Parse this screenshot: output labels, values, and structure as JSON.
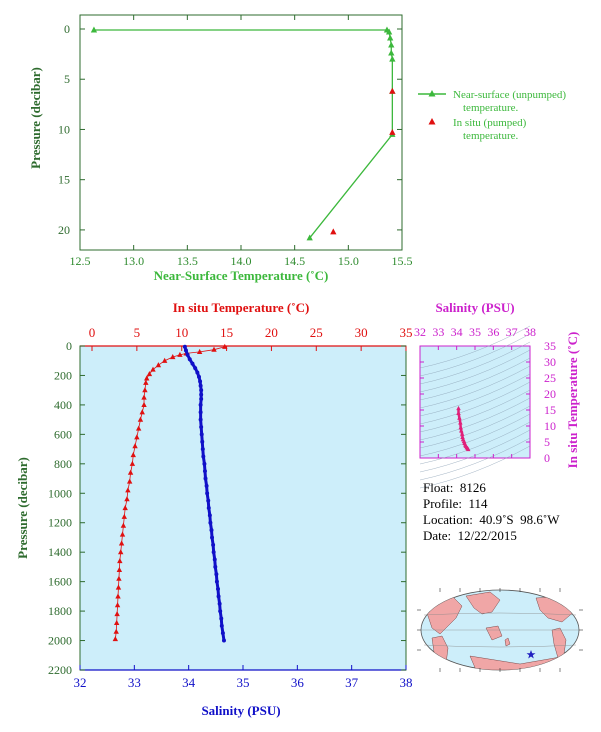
{
  "chart_data": [
    {
      "type": "line",
      "xlabel": "Near-Surface Temperature (˚C)",
      "ylabel": "Pressure (decibar)",
      "xlim": [
        12.5,
        15.5
      ],
      "ylim": [
        0,
        22
      ],
      "y_inverted": true,
      "xticks": [
        "12.5",
        "13.0",
        "13.5",
        "14.0",
        "14.5",
        "15.0",
        "15.5"
      ],
      "yticks": [
        "0",
        "5",
        "10",
        "15",
        "20"
      ],
      "colors": {
        "axis": "#2e8b2e",
        "series1": "#3cb83c",
        "series2": "#e01010"
      },
      "series": [
        {
          "name": "Near-surface (unpumped)\ntemperature.",
          "marker": "triangle",
          "line": true,
          "points": [
            [
              12.63,
              0.1
            ],
            [
              15.36,
              0.1
            ],
            [
              15.38,
              0.3
            ],
            [
              15.39,
              0.9
            ],
            [
              15.4,
              1.6
            ],
            [
              15.4,
              2.4
            ],
            [
              15.41,
              3.0
            ],
            [
              15.41,
              6.2
            ],
            [
              15.41,
              10.5
            ],
            [
              14.64,
              20.8
            ]
          ]
        },
        {
          "name": "In situ (pumped)\ntemperature.",
          "marker": "triangle",
          "line": false,
          "points": [
            [
              15.41,
              6.2
            ],
            [
              15.41,
              10.3
            ],
            [
              14.86,
              20.2
            ]
          ]
        }
      ]
    },
    {
      "type": "line",
      "xlabel": "Salinity (PSU)",
      "x2label": "In situ Temperature (˚C)",
      "ylabel": "Pressure (decibar)",
      "xlim": [
        32,
        38
      ],
      "x2lim": [
        0,
        35
      ],
      "ylim": [
        0,
        2200
      ],
      "y_inverted": true,
      "xticks": [
        "32",
        "33",
        "34",
        "35",
        "36",
        "37",
        "38"
      ],
      "x2ticks": [
        "0",
        "5",
        "10",
        "15",
        "20",
        "25",
        "30",
        "35"
      ],
      "yticks": [
        "0",
        "200",
        "400",
        "600",
        "800",
        "1000",
        "1200",
        "1400",
        "1600",
        "1800",
        "2000",
        "2200"
      ],
      "background": "#cdeefa",
      "colors": {
        "temperature": "#e01010",
        "salinity": "#1010c8",
        "axis_text": "#2e6b2e"
      },
      "temperature_profile": [
        [
          14.8,
          5
        ],
        [
          13.6,
          25
        ],
        [
          12.0,
          40
        ],
        [
          10.5,
          50
        ],
        [
          9.8,
          60
        ],
        [
          9.0,
          75
        ],
        [
          8.1,
          100
        ],
        [
          7.4,
          130
        ],
        [
          6.8,
          160
        ],
        [
          6.4,
          190
        ],
        [
          6.1,
          220
        ],
        [
          6.0,
          250
        ],
        [
          5.9,
          300
        ],
        [
          5.8,
          350
        ],
        [
          5.8,
          400
        ],
        [
          5.6,
          450
        ],
        [
          5.4,
          500
        ],
        [
          5.2,
          560
        ],
        [
          5.0,
          620
        ],
        [
          4.8,
          680
        ],
        [
          4.6,
          740
        ],
        [
          4.5,
          800
        ],
        [
          4.3,
          860
        ],
        [
          4.2,
          920
        ],
        [
          4.0,
          980
        ],
        [
          3.9,
          1040
        ],
        [
          3.7,
          1100
        ],
        [
          3.6,
          1160
        ],
        [
          3.5,
          1220
        ],
        [
          3.4,
          1280
        ],
        [
          3.3,
          1340
        ],
        [
          3.2,
          1400
        ],
        [
          3.1,
          1460
        ],
        [
          3.05,
          1520
        ],
        [
          3.0,
          1580
        ],
        [
          2.95,
          1640
        ],
        [
          2.9,
          1700
        ],
        [
          2.85,
          1760
        ],
        [
          2.8,
          1820
        ],
        [
          2.75,
          1880
        ],
        [
          2.7,
          1940
        ],
        [
          2.6,
          1990
        ]
      ],
      "salinity_profile": [
        [
          33.93,
          5
        ],
        [
          33.95,
          30
        ],
        [
          33.98,
          60
        ],
        [
          34.02,
          90
        ],
        [
          34.07,
          120
        ],
        [
          34.12,
          150
        ],
        [
          34.16,
          180
        ],
        [
          34.19,
          210
        ],
        [
          34.21,
          240
        ],
        [
          34.22,
          270
        ],
        [
          34.23,
          300
        ],
        [
          34.23,
          330
        ],
        [
          34.23,
          360
        ],
        [
          34.22,
          400
        ],
        [
          34.22,
          450
        ],
        [
          34.22,
          500
        ],
        [
          34.23,
          550
        ],
        [
          34.24,
          600
        ],
        [
          34.25,
          650
        ],
        [
          34.26,
          700
        ],
        [
          34.27,
          750
        ],
        [
          34.29,
          800
        ],
        [
          34.3,
          850
        ],
        [
          34.31,
          900
        ],
        [
          34.33,
          950
        ],
        [
          34.34,
          1000
        ],
        [
          34.36,
          1050
        ],
        [
          34.37,
          1100
        ],
        [
          34.39,
          1150
        ],
        [
          34.4,
          1200
        ],
        [
          34.42,
          1250
        ],
        [
          34.43,
          1300
        ],
        [
          34.45,
          1350
        ],
        [
          34.46,
          1400
        ],
        [
          34.48,
          1450
        ],
        [
          34.49,
          1500
        ],
        [
          34.51,
          1550
        ],
        [
          34.52,
          1600
        ],
        [
          34.54,
          1650
        ],
        [
          34.55,
          1700
        ],
        [
          34.57,
          1750
        ],
        [
          34.58,
          1800
        ],
        [
          34.6,
          1850
        ],
        [
          34.61,
          1900
        ],
        [
          34.63,
          1950
        ],
        [
          34.65,
          2000
        ]
      ]
    },
    {
      "type": "scatter",
      "xlabel": "Salinity (PSU)",
      "ylabel": "In situ Temperature (˚C)",
      "xlim": [
        32,
        38
      ],
      "ylim": [
        0,
        35
      ],
      "xticks": [
        "32",
        "33",
        "34",
        "35",
        "36",
        "37",
        "38"
      ],
      "yticks": [
        "0",
        "5",
        "10",
        "15",
        "20",
        "25",
        "30",
        "35"
      ],
      "colors": {
        "axis": "#cc22cc",
        "points": "#e0207a",
        "contours": "#8aa0b4",
        "background": "#cdeefa"
      },
      "points": [
        [
          34.1,
          15.5
        ],
        [
          34.1,
          14.0
        ],
        [
          34.15,
          12.5
        ],
        [
          34.2,
          11.0
        ],
        [
          34.22,
          9.5
        ],
        [
          34.25,
          8.5
        ],
        [
          34.3,
          7.5
        ],
        [
          34.32,
          6.5
        ],
        [
          34.35,
          5.8
        ],
        [
          34.4,
          5.2
        ],
        [
          34.43,
          4.6
        ],
        [
          34.47,
          4.1
        ],
        [
          34.5,
          3.7
        ],
        [
          34.55,
          3.3
        ],
        [
          34.6,
          3.0
        ],
        [
          34.63,
          2.7
        ]
      ]
    }
  ],
  "float_info": {
    "float": "Float:  8126",
    "profile": "Profile:  114",
    "location": "Location:  40.9˚S  98.6˚W",
    "date": "Date:  12/22/2015"
  },
  "map": {
    "marker_color": "#2020c0",
    "ocean_color": "#cdeefa",
    "land_color": "#f0a6a6"
  }
}
